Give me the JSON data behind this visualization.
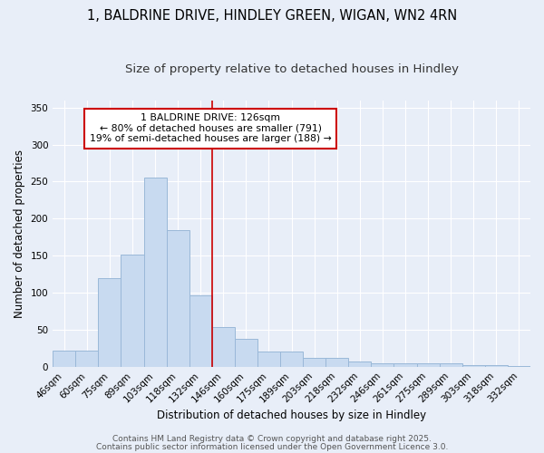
{
  "title1": "1, BALDRINE DRIVE, HINDLEY GREEN, WIGAN, WN2 4RN",
  "title2": "Size of property relative to detached houses in Hindley",
  "xlabel": "Distribution of detached houses by size in Hindley",
  "ylabel": "Number of detached properties",
  "categories": [
    "46sqm",
    "60sqm",
    "75sqm",
    "89sqm",
    "103sqm",
    "118sqm",
    "132sqm",
    "146sqm",
    "160sqm",
    "175sqm",
    "189sqm",
    "203sqm",
    "218sqm",
    "232sqm",
    "246sqm",
    "261sqm",
    "275sqm",
    "289sqm",
    "303sqm",
    "318sqm",
    "332sqm"
  ],
  "values": [
    22,
    22,
    120,
    152,
    255,
    184,
    96,
    54,
    38,
    20,
    20,
    12,
    12,
    7,
    5,
    5,
    4,
    4,
    2,
    2,
    1
  ],
  "bar_color": "#c8daf0",
  "bar_edge_color": "#9ab8d8",
  "bar_linewidth": 0.7,
  "vline_color": "#cc0000",
  "vline_linewidth": 1.2,
  "vline_pos": 6.5,
  "annotation_text": "1 BALDRINE DRIVE: 126sqm\n← 80% of detached houses are smaller (791)\n19% of semi-detached houses are larger (188) →",
  "annotation_box_color": "#ffffff",
  "annotation_box_edge": "#cc0000",
  "ylim": [
    0,
    360
  ],
  "yticks": [
    0,
    50,
    100,
    150,
    200,
    250,
    300,
    350
  ],
  "bg_color": "#e8eef8",
  "grid_color": "#ffffff",
  "footer1": "Contains HM Land Registry data © Crown copyright and database right 2025.",
  "footer2": "Contains public sector information licensed under the Open Government Licence 3.0.",
  "title_fontsize": 10.5,
  "subtitle_fontsize": 9.5,
  "label_fontsize": 8.5,
  "tick_fontsize": 7.5,
  "ann_fontsize": 7.8,
  "footer_fontsize": 6.5
}
